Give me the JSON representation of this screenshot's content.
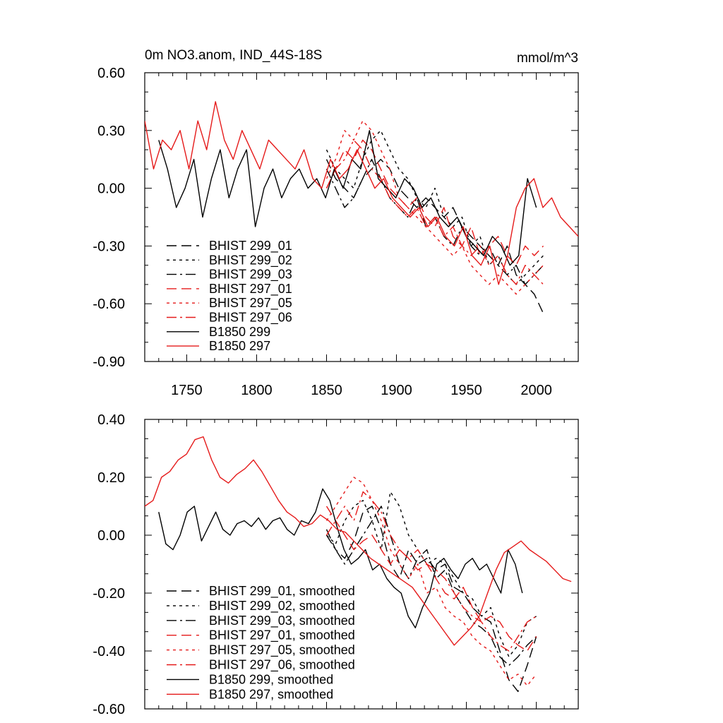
{
  "chart_data": [
    {
      "type": "line",
      "title": "0m NO3.anom, IND_44S-18S",
      "units_label": "mmol/m^3",
      "xlim": [
        1720,
        2030
      ],
      "ylim": [
        -0.9,
        0.6
      ],
      "x_ticks": [
        1750,
        1800,
        1850,
        1900,
        1950,
        2000
      ],
      "x_tick_labels": [
        "1750",
        "1800",
        "1850",
        "1900",
        "1950",
        "2000"
      ],
      "y_ticks": [
        0.6,
        0.3,
        0.0,
        -0.3,
        -0.6,
        -0.9
      ],
      "y_tick_labels": [
        "0.60",
        "0.30",
        "0.00",
        "-0.30",
        "-0.60",
        "-0.90"
      ],
      "legend_position": "bottom-left",
      "series": [
        {
          "name": "BHIST 299_01",
          "color": "#000000",
          "dash": "dash",
          "x_start": 1850,
          "x_end": 2005,
          "values": [
            0.15,
            0.05,
            0.0,
            -0.05,
            0.05,
            0.1,
            0.15,
            0.1,
            0.0,
            -0.05,
            -0.1,
            -0.05,
            -0.1,
            -0.15,
            -0.1,
            -0.2,
            -0.25,
            -0.3,
            -0.35,
            -0.4,
            -0.3,
            -0.45,
            -0.5,
            -0.55,
            -0.65
          ]
        },
        {
          "name": "BHIST 299_02",
          "color": "#000000",
          "dash": "dot",
          "x_start": 1850,
          "x_end": 2005,
          "values": [
            0.2,
            0.1,
            0.05,
            0.0,
            0.15,
            0.25,
            0.3,
            0.2,
            0.1,
            0.05,
            -0.05,
            -0.1,
            0.0,
            -0.15,
            -0.2,
            -0.15,
            -0.3,
            -0.25,
            -0.4,
            -0.35,
            -0.45,
            -0.5,
            -0.45,
            -0.4,
            -0.35
          ]
        },
        {
          "name": "BHIST 299_03",
          "color": "#000000",
          "dash": "dashdot",
          "x_start": 1850,
          "x_end": 2005,
          "values": [
            0.1,
            0.0,
            -0.1,
            -0.05,
            0.05,
            0.15,
            0.05,
            -0.05,
            -0.1,
            -0.15,
            -0.05,
            -0.2,
            -0.15,
            -0.25,
            -0.3,
            -0.2,
            -0.3,
            -0.35,
            -0.3,
            -0.4,
            -0.45,
            -0.4,
            -0.5,
            -0.45,
            -0.4
          ]
        },
        {
          "name": "BHIST 297_01",
          "color": "#e51a1a",
          "dash": "dash",
          "x_start": 1850,
          "x_end": 2005,
          "values": [
            0.0,
            0.1,
            0.2,
            0.15,
            0.25,
            0.2,
            0.1,
            0.0,
            -0.05,
            -0.1,
            -0.05,
            -0.15,
            -0.2,
            -0.1,
            -0.25,
            -0.3,
            -0.2,
            -0.35,
            -0.3,
            -0.25,
            -0.35,
            -0.4,
            -0.3,
            -0.35,
            -0.3
          ]
        },
        {
          "name": "BHIST 297_05",
          "color": "#e51a1a",
          "dash": "dot",
          "x_start": 1850,
          "x_end": 2005,
          "values": [
            0.05,
            0.15,
            0.3,
            0.25,
            0.35,
            0.3,
            0.2,
            0.1,
            -0.05,
            -0.1,
            -0.15,
            -0.2,
            -0.25,
            -0.3,
            -0.35,
            -0.3,
            -0.4,
            -0.45,
            -0.5,
            -0.45,
            -0.5,
            -0.55,
            -0.5,
            -0.45,
            -0.4
          ]
        },
        {
          "name": "BHIST 297_06",
          "color": "#e51a1a",
          "dash": "dashdot",
          "x_start": 1850,
          "x_end": 2005,
          "values": [
            0.0,
            0.1,
            0.15,
            0.25,
            0.2,
            0.1,
            0.05,
            -0.05,
            -0.1,
            -0.15,
            -0.1,
            -0.2,
            -0.15,
            -0.25,
            -0.2,
            -0.3,
            -0.35,
            -0.3,
            -0.4,
            -0.35,
            -0.45,
            -0.5,
            -0.4,
            -0.45,
            -0.5
          ]
        },
        {
          "name": "B1850 299",
          "color": "#000000",
          "dash": "solid",
          "x_start": 1730,
          "x_end": 2000,
          "values": [
            0.25,
            0.1,
            -0.1,
            0.0,
            0.15,
            -0.15,
            0.05,
            0.2,
            -0.05,
            0.1,
            0.2,
            -0.2,
            0.0,
            0.1,
            -0.05,
            0.05,
            0.1,
            0.0,
            0.05,
            -0.05,
            0.1,
            0.0,
            0.15,
            0.1,
            0.3,
            0.05,
            0.0,
            -0.05,
            0.05,
            0.0,
            -0.1,
            -0.05,
            -0.15,
            -0.2,
            -0.15,
            -0.25,
            -0.3,
            -0.35,
            -0.25,
            -0.3,
            -0.4,
            -0.35,
            0.05,
            -0.1
          ]
        },
        {
          "name": "B1850 297",
          "color": "#e51a1a",
          "dash": "solid",
          "x_start": 1720,
          "x_end": 2030,
          "values": [
            0.35,
            0.1,
            0.25,
            0.2,
            0.3,
            0.1,
            0.35,
            0.2,
            0.45,
            0.25,
            0.15,
            0.3,
            0.2,
            0.1,
            0.25,
            0.2,
            0.15,
            0.1,
            0.2,
            0.05,
            0.0,
            0.15,
            0.05,
            0.1,
            0.2,
            0.1,
            0.0,
            0.05,
            -0.05,
            -0.1,
            -0.15,
            -0.1,
            -0.2,
            -0.15,
            -0.25,
            -0.3,
            -0.2,
            -0.35,
            -0.4,
            -0.3,
            -0.5,
            -0.35,
            -0.1,
            0.0,
            0.05,
            -0.1,
            -0.05,
            -0.15,
            -0.2,
            -0.25
          ]
        }
      ]
    },
    {
      "type": "line",
      "title": "",
      "xlim": [
        1720,
        2030
      ],
      "ylim": [
        -0.6,
        0.4
      ],
      "y_ticks": [
        0.4,
        0.2,
        0.0,
        -0.2,
        -0.4,
        -0.6
      ],
      "y_tick_labels": [
        "0.40",
        "0.20",
        "0.00",
        "-0.20",
        "-0.40",
        "-0.60"
      ],
      "legend_position": "bottom-left",
      "series": [
        {
          "name": "BHIST 299_01, smoothed",
          "color": "#000000",
          "dash": "dash",
          "x_start": 1850,
          "x_end": 2000,
          "values": [
            0.02,
            -0.05,
            -0.08,
            -0.02,
            0.08,
            0.1,
            0.02,
            -0.1,
            -0.15,
            -0.05,
            -0.1,
            -0.08,
            -0.12,
            -0.1,
            -0.18,
            -0.2,
            -0.25,
            -0.28,
            -0.3,
            -0.4,
            -0.5,
            -0.54,
            -0.45,
            -0.35
          ]
        },
        {
          "name": "BHIST 299_02, smoothed",
          "color": "#000000",
          "dash": "dot",
          "x_start": 1850,
          "x_end": 2000,
          "values": [
            0.0,
            -0.03,
            0.05,
            0.1,
            0.12,
            0.05,
            -0.05,
            0.15,
            0.1,
            0.0,
            -0.05,
            -0.1,
            -0.08,
            -0.1,
            -0.15,
            -0.2,
            -0.22,
            -0.28,
            -0.25,
            -0.35,
            -0.42,
            -0.38,
            -0.3,
            -0.28
          ]
        },
        {
          "name": "BHIST 299_03, smoothed",
          "color": "#000000",
          "dash": "dashdot",
          "x_start": 1850,
          "x_end": 2000,
          "values": [
            0.0,
            -0.05,
            -0.1,
            -0.05,
            0.0,
            0.05,
            0.1,
            0.0,
            -0.1,
            -0.15,
            -0.08,
            -0.05,
            -0.15,
            -0.12,
            -0.2,
            -0.25,
            -0.3,
            -0.32,
            -0.35,
            -0.42,
            -0.45,
            -0.42,
            -0.38,
            -0.35
          ]
        },
        {
          "name": "BHIST 297_01, smoothed",
          "color": "#e51a1a",
          "dash": "dash",
          "x_start": 1850,
          "x_end": 2000,
          "values": [
            0.1,
            0.05,
            0.0,
            -0.05,
            -0.02,
            0.0,
            -0.05,
            -0.1,
            -0.05,
            -0.08,
            -0.12,
            -0.1,
            -0.15,
            -0.2,
            -0.22,
            -0.18,
            -0.25,
            -0.3,
            -0.28,
            -0.3,
            -0.35,
            -0.38,
            -0.4,
            -0.35
          ]
        },
        {
          "name": "BHIST 297_05, smoothed",
          "color": "#e51a1a",
          "dash": "dot",
          "x_start": 1850,
          "x_end": 2000,
          "values": [
            0.05,
            0.1,
            0.15,
            0.2,
            0.18,
            0.12,
            0.05,
            -0.05,
            -0.1,
            -0.15,
            -0.1,
            -0.2,
            -0.18,
            -0.25,
            -0.28,
            -0.3,
            -0.35,
            -0.38,
            -0.4,
            -0.45,
            -0.5,
            -0.48,
            -0.52,
            -0.48
          ]
        },
        {
          "name": "BHIST 297_06, smoothed",
          "color": "#e51a1a",
          "dash": "dashdot",
          "x_start": 1850,
          "x_end": 2000,
          "values": [
            0.0,
            0.05,
            0.1,
            0.05,
            0.15,
            0.12,
            0.08,
            0.0,
            -0.05,
            -0.08,
            -0.05,
            -0.1,
            -0.12,
            -0.15,
            -0.2,
            -0.25,
            -0.28,
            -0.3,
            -0.35,
            -0.38,
            -0.4,
            -0.35,
            -0.3,
            -0.28
          ]
        },
        {
          "name": "B1850 299, smoothed",
          "color": "#000000",
          "dash": "solid",
          "x_start": 1730,
          "x_end": 1990,
          "values": [
            0.08,
            -0.03,
            -0.05,
            0.0,
            0.08,
            0.1,
            -0.02,
            0.03,
            0.08,
            0.02,
            0.0,
            0.04,
            0.05,
            0.03,
            0.06,
            0.02,
            0.05,
            0.06,
            0.02,
            0.0,
            0.05,
            0.04,
            0.08,
            0.16,
            0.12,
            0.03,
            -0.05,
            -0.1,
            -0.08,
            -0.05,
            -0.12,
            -0.1,
            -0.15,
            -0.18,
            -0.2,
            -0.28,
            -0.32,
            -0.25,
            -0.2,
            -0.1,
            -0.08,
            -0.12,
            -0.15,
            -0.1,
            -0.08,
            -0.12,
            -0.1,
            -0.15,
            -0.2,
            -0.05,
            -0.1,
            -0.2
          ]
        },
        {
          "name": "B1850 297, smoothed",
          "color": "#e51a1a",
          "dash": "solid",
          "x_start": 1720,
          "x_end": 2025,
          "values": [
            0.1,
            0.12,
            0.2,
            0.22,
            0.26,
            0.28,
            0.33,
            0.34,
            0.26,
            0.2,
            0.18,
            0.21,
            0.23,
            0.26,
            0.22,
            0.17,
            0.12,
            0.08,
            0.06,
            0.03,
            0.04,
            0.07,
            0.05,
            0.02,
            0.01,
            -0.02,
            -0.05,
            -0.08,
            -0.1,
            -0.12,
            -0.14,
            -0.16,
            -0.18,
            -0.22,
            -0.26,
            -0.3,
            -0.34,
            -0.38,
            -0.35,
            -0.32,
            -0.28,
            -0.2,
            -0.12,
            -0.06,
            -0.04,
            -0.02,
            -0.05,
            -0.07,
            -0.09,
            -0.12,
            -0.15,
            -0.16
          ]
        }
      ]
    }
  ]
}
